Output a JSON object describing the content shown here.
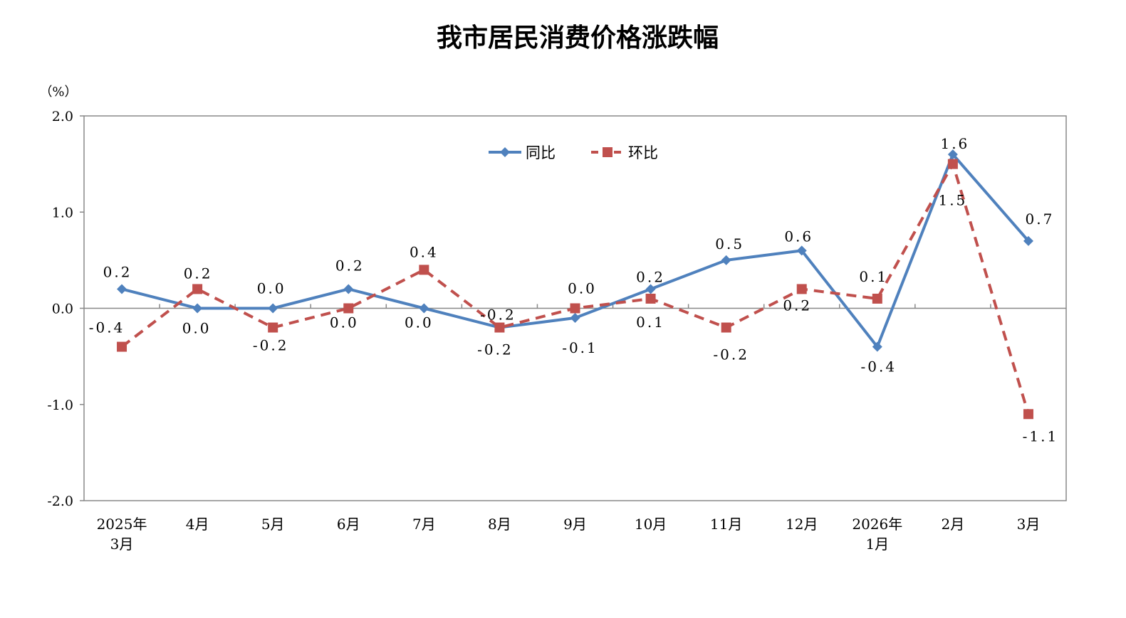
{
  "chart_data": {
    "type": "line",
    "title": "我市居民消费价格涨跌幅",
    "ylabel": "（%）",
    "xlabel": "",
    "ylim": [
      -2.0,
      2.0
    ],
    "yticks": [
      "2.0",
      "1.0",
      "0.0",
      "-1.0",
      "-2.0"
    ],
    "grid": false,
    "legend_position": "top-center",
    "categories": [
      [
        "2025年",
        "3月"
      ],
      [
        "4月"
      ],
      [
        "5月"
      ],
      [
        "6月"
      ],
      [
        "7月"
      ],
      [
        "8月"
      ],
      [
        "9月"
      ],
      [
        "10月"
      ],
      [
        "11月"
      ],
      [
        "12月"
      ],
      [
        "2026年",
        "1月"
      ],
      [
        "2月"
      ],
      [
        "3月"
      ]
    ],
    "series": [
      {
        "name": "同比",
        "color": "#4F81BD",
        "marker": "diamond",
        "dash": false,
        "values": [
          0.2,
          0.0,
          0.0,
          0.2,
          0.0,
          -0.2,
          -0.1,
          0.2,
          0.5,
          0.6,
          -0.4,
          1.6,
          0.7
        ]
      },
      {
        "name": "环比",
        "color": "#C0504D",
        "marker": "square",
        "dash": true,
        "values": [
          -0.4,
          0.2,
          -0.2,
          0.0,
          0.4,
          -0.2,
          0.0,
          0.1,
          -0.2,
          0.2,
          0.1,
          1.5,
          -1.1
        ]
      }
    ]
  }
}
